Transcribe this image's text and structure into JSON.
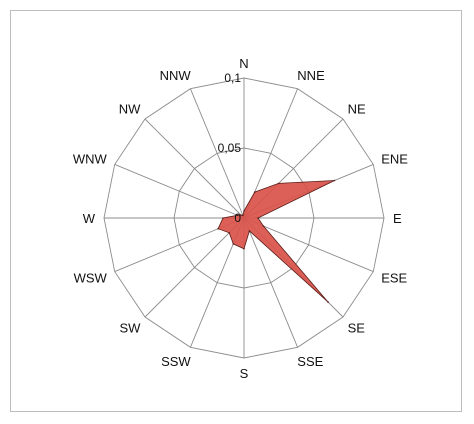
{
  "chart_data": {
    "type": "radar",
    "directions": [
      "N",
      "NNE",
      "NE",
      "ENE",
      "E",
      "ESE",
      "SE",
      "SSE",
      "S",
      "SSW",
      "SW",
      "WSW",
      "W",
      "WNW",
      "NW",
      "NNW"
    ],
    "ticks": [
      "0",
      "0,05",
      "0,1"
    ],
    "rlim": [
      0,
      0.1
    ],
    "grid": true,
    "series": [
      {
        "values": [
          0.005,
          0.02,
          0.035,
          0.07,
          0.01,
          0.015,
          0.085,
          0.01,
          0.022,
          0.02,
          0.015,
          0.02,
          0.015,
          0.005,
          0.003,
          0.002
        ],
        "color": "#d9534a"
      }
    ]
  }
}
